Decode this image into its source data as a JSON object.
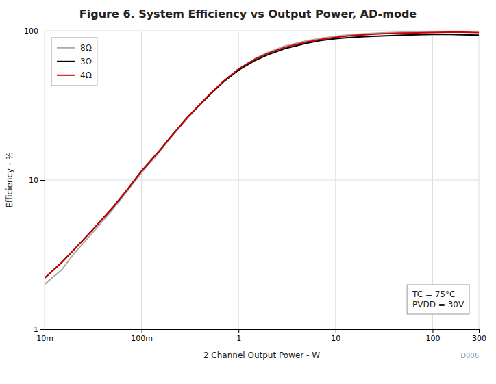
{
  "chart_data": {
    "type": "line",
    "title": "Figure 6. System Efficiency vs Output Power, AD-mode",
    "x_label": "2 Channel Output Power - W",
    "y_label": "Efficiency - %",
    "annotations": [
      "TC = 75°C\nPVDD = 30V",
      "D006"
    ],
    "log": true,
    "grid": true,
    "legend": "upper left",
    "xlim": [
      0.01,
      300
    ],
    "ylim": [
      1,
      100
    ],
    "xticks": [
      {
        "value": 0.01,
        "label": "10m"
      },
      {
        "value": 0.1,
        "label": "100m"
      },
      1,
      10,
      100,
      300
    ],
    "yticks": [
      1,
      10,
      100
    ],
    "series": [
      {
        "name": "8Ω",
        "color": "#aaaaaa",
        "x": [
          0.01,
          0.015,
          0.02,
          0.03,
          0.05,
          0.07,
          0.1,
          0.15,
          0.2,
          0.3,
          0.5,
          0.7,
          1.0,
          1.5,
          2.0,
          3.0,
          5.0,
          7.0,
          10.0,
          15.0,
          20.0,
          30.0,
          50.0,
          70.0,
          100.0,
          150.0,
          200.0,
          250.0
        ],
        "values": [
          2.0,
          2.5,
          3.2,
          4.3,
          6.3,
          8.3,
          11.2,
          15.2,
          19.2,
          26.2,
          37.0,
          46.0,
          55.5,
          65.5,
          71.5,
          79.0,
          85.5,
          89.0,
          92.0,
          94.5,
          95.5,
          97.0,
          98.0,
          98.5,
          98.5,
          98.5,
          98.5,
          98.5
        ]
      },
      {
        "name": "3Ω",
        "color": "#000000",
        "x": [
          0.01,
          0.015,
          0.02,
          0.03,
          0.05,
          0.07,
          0.1,
          0.15,
          0.2,
          0.3,
          0.5,
          0.7,
          1.0,
          1.5,
          2.0,
          3.0,
          5.0,
          7.0,
          10.0,
          15.0,
          20.0,
          30.0,
          50.0,
          70.0,
          100.0,
          150.0,
          200.0,
          300.0
        ],
        "values": [
          2.2,
          2.8,
          3.4,
          4.5,
          6.5,
          8.5,
          11.5,
          15.5,
          19.5,
          26.5,
          37.0,
          45.5,
          54.5,
          63.5,
          69.0,
          76.0,
          82.5,
          86.0,
          88.5,
          90.5,
          91.5,
          92.5,
          93.5,
          94.0,
          94.5,
          94.5,
          94.0,
          93.5
        ]
      },
      {
        "name": "4Ω",
        "color": "#cc0000",
        "x": [
          0.01,
          0.015,
          0.02,
          0.03,
          0.05,
          0.07,
          0.1,
          0.15,
          0.2,
          0.3,
          0.5,
          0.7,
          1.0,
          1.5,
          2.0,
          3.0,
          5.0,
          7.0,
          10.0,
          15.0,
          20.0,
          30.0,
          50.0,
          70.0,
          100.0,
          150.0,
          200.0,
          300.0
        ],
        "values": [
          2.2,
          2.8,
          3.4,
          4.5,
          6.5,
          8.5,
          11.5,
          15.5,
          19.5,
          26.5,
          37.5,
          46.0,
          55.5,
          65.0,
          70.5,
          77.5,
          84.0,
          87.5,
          90.5,
          93.0,
          94.0,
          95.5,
          96.5,
          97.0,
          97.5,
          98.0,
          98.0,
          97.5
        ]
      }
    ]
  }
}
